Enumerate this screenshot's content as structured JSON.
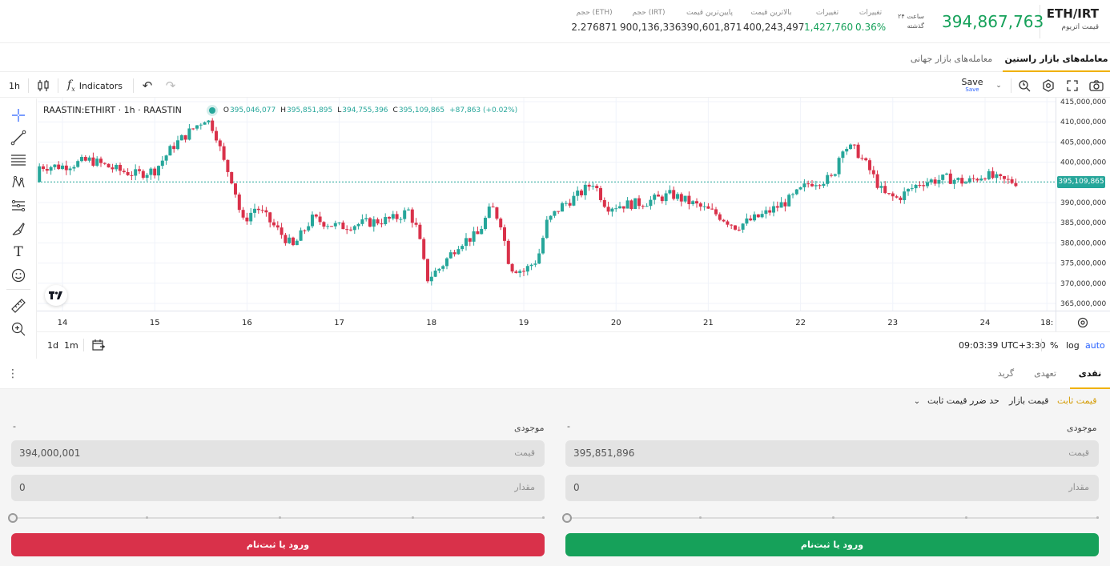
{
  "header": {
    "pair_symbol": "ETH/IRT",
    "pair_name": "قیمت اتریوم",
    "last_price": "394,867,763",
    "period_line1": "۲۴ ساعت",
    "period_line2": "گذشته",
    "stats": [
      {
        "label": "تغییرات",
        "value": "0.36%",
        "green": true
      },
      {
        "label": "تغییرات",
        "value": "1,427,760",
        "green": true
      },
      {
        "label": "بالاترین قیمت",
        "value": "400,243,497",
        "green": false
      },
      {
        "label": "پایین‌ترین قیمت",
        "value": "390,601,871",
        "green": false
      },
      {
        "label": "حجم (IRT)",
        "value": "900,136,336",
        "green": false
      },
      {
        "label": "حجم (ETH)",
        "value": "2.276871",
        "green": false
      }
    ]
  },
  "market_tabs": {
    "active": "معامله‌های بازار راستین",
    "other": "معامله‌های بازار جهانی"
  },
  "toolbar": {
    "interval": "1h",
    "indicators_label": "Indicators",
    "save_label": "Save",
    "save_sub": "Save"
  },
  "chart_legend": {
    "symbol": "RAASTIN:ETHIRT · 1h · RAASTIN",
    "o_label": "O",
    "o_value": "395,046,077",
    "h_label": "H",
    "h_value": "395,851,895",
    "l_label": "L",
    "l_value": "394,755,396",
    "c_label": "C",
    "c_value": "395,109,865",
    "change": "+87,863 (+0.02%)"
  },
  "chart_data": {
    "type": "candlestick",
    "interval": "1h",
    "x_ticks": [
      "14",
      "15",
      "16",
      "17",
      "18",
      "19",
      "20",
      "21",
      "22",
      "23",
      "24",
      "18:"
    ],
    "y_ticks": [
      "415,000,000",
      "410,000,000",
      "405,000,000",
      "400,000,000",
      "395,109,865",
      "390,000,000",
      "385,000,000",
      "380,000,000",
      "375,000,000",
      "370,000,000",
      "365,000,000"
    ],
    "ylim": [
      364000000,
      416000000
    ],
    "last_price_label": "395,109,865",
    "last_price_value": 395109865,
    "up_color": "#26a69a",
    "down_color": "#d9314a",
    "close_path": [
      [
        14.0,
        399000000
      ],
      [
        14.3,
        400500000
      ],
      [
        14.6,
        398000000
      ],
      [
        14.8,
        397000000
      ],
      [
        15.0,
        398000000
      ],
      [
        15.2,
        404000000
      ],
      [
        15.4,
        408000000
      ],
      [
        15.55,
        411000000
      ],
      [
        15.65,
        408000000
      ],
      [
        15.75,
        400000000
      ],
      [
        15.85,
        395000000
      ],
      [
        15.95,
        385000000
      ],
      [
        16.1,
        389000000
      ],
      [
        16.3,
        384000000
      ],
      [
        16.5,
        379000000
      ],
      [
        16.7,
        386000000
      ],
      [
        17.0,
        384000000
      ],
      [
        17.3,
        385000000
      ],
      [
        17.6,
        386000000
      ],
      [
        17.75,
        388000000
      ],
      [
        17.85,
        383000000
      ],
      [
        17.95,
        371000000
      ],
      [
        18.1,
        374000000
      ],
      [
        18.3,
        380000000
      ],
      [
        18.5,
        382000000
      ],
      [
        18.65,
        389000000
      ],
      [
        18.75,
        385000000
      ],
      [
        18.85,
        374000000
      ],
      [
        19.0,
        373000000
      ],
      [
        19.15,
        376000000
      ],
      [
        19.25,
        385000000
      ],
      [
        19.4,
        389000000
      ],
      [
        19.6,
        392000000
      ],
      [
        19.75,
        395000000
      ],
      [
        19.9,
        389000000
      ],
      [
        20.3,
        390000000
      ],
      [
        20.6,
        392000000
      ],
      [
        20.9,
        389000000
      ],
      [
        21.1,
        387000000
      ],
      [
        21.3,
        384000000
      ],
      [
        21.6,
        387000000
      ],
      [
        21.9,
        391000000
      ],
      [
        22.1,
        395000000
      ],
      [
        22.35,
        396000000
      ],
      [
        22.45,
        404000000
      ],
      [
        22.6,
        403000000
      ],
      [
        22.75,
        398000000
      ],
      [
        22.9,
        392000000
      ],
      [
        23.05,
        391000000
      ],
      [
        23.3,
        395000000
      ],
      [
        23.6,
        396000000
      ],
      [
        23.8,
        395000000
      ],
      [
        24.0,
        397000000
      ],
      [
        24.15,
        395500000
      ],
      [
        24.35,
        395100000
      ]
    ]
  },
  "bottom_toolbar": {
    "range_1d": "1d",
    "range_1m": "1m",
    "clock": "09:03:39 UTC+3:30",
    "percent": "%",
    "log": "log",
    "auto": "auto"
  },
  "order_tabs": {
    "cash": "نقدی",
    "margin": "تعهدی",
    "grid": "گرید"
  },
  "order_types": {
    "limit": "قیمت ثابت",
    "market": "قیمت بازار",
    "stop_limit": "حد ضرر قیمت ثابت"
  },
  "buy": {
    "available_label": "موجودی",
    "available_value": "-",
    "price_value": "395,851,896",
    "price_label": "قیمت",
    "amount_value": "0",
    "amount_label": "مقدار",
    "button": "ورود یا ثبت‌نام",
    "color": "#16a15a"
  },
  "sell": {
    "available_label": "موجودی",
    "available_value": "-",
    "price_value": "394,000,001",
    "price_label": "قیمت",
    "amount_value": "0",
    "amount_label": "مقدار",
    "button": "ورود یا ثبت‌نام",
    "color": "#d9314a"
  }
}
